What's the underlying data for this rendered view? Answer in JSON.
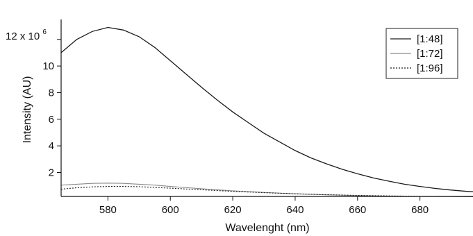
{
  "chart_data": {
    "type": "line",
    "xlabel": "Wavelenght (nm)",
    "ylabel": "Intensity (AU)",
    "y_axis_multiplier": {
      "base": "12 x 10",
      "exp": "6"
    },
    "xlim": [
      565,
      697
    ],
    "ylim": [
      0.2,
      13.5
    ],
    "x_ticks": [
      580,
      600,
      620,
      640,
      660,
      680
    ],
    "y_ticks": [
      2,
      4,
      6,
      8,
      10
    ],
    "grid": false,
    "legend_position": "top-right",
    "series": [
      {
        "name": "[1:48]",
        "color": "#1a1a1a",
        "dash": "solid",
        "x": [
          565,
          570,
          575,
          580,
          585,
          590,
          595,
          600,
          605,
          610,
          615,
          620,
          625,
          630,
          635,
          640,
          645,
          650,
          655,
          660,
          665,
          670,
          675,
          680,
          685,
          690,
          695,
          697
        ],
        "y": [
          11.0,
          12.0,
          12.6,
          12.9,
          12.7,
          12.2,
          11.4,
          10.4,
          9.4,
          8.4,
          7.45,
          6.55,
          5.75,
          4.95,
          4.3,
          3.65,
          3.1,
          2.65,
          2.25,
          1.9,
          1.6,
          1.35,
          1.12,
          0.95,
          0.8,
          0.68,
          0.58,
          0.55
        ]
      },
      {
        "name": "[1:72]",
        "color": "#8a8a8a",
        "dash": "solid",
        "x": [
          565,
          570,
          575,
          580,
          585,
          590,
          595,
          600,
          610,
          620,
          630,
          640,
          650,
          660,
          670,
          680,
          690,
          697
        ],
        "y": [
          1.05,
          1.12,
          1.18,
          1.2,
          1.18,
          1.12,
          1.05,
          0.95,
          0.78,
          0.62,
          0.5,
          0.4,
          0.32,
          0.26,
          0.22,
          0.2,
          0.19,
          0.18
        ]
      },
      {
        "name": "[1:96]",
        "color": "#1a1a1a",
        "dash": "dotted",
        "x": [
          565,
          570,
          575,
          580,
          585,
          590,
          595,
          600,
          610,
          620,
          630,
          640,
          650,
          660,
          670,
          680,
          690,
          697
        ],
        "y": [
          0.75,
          0.85,
          0.92,
          0.95,
          0.95,
          0.93,
          0.88,
          0.82,
          0.7,
          0.58,
          0.48,
          0.4,
          0.33,
          0.28,
          0.24,
          0.21,
          0.2,
          0.19
        ]
      }
    ]
  }
}
